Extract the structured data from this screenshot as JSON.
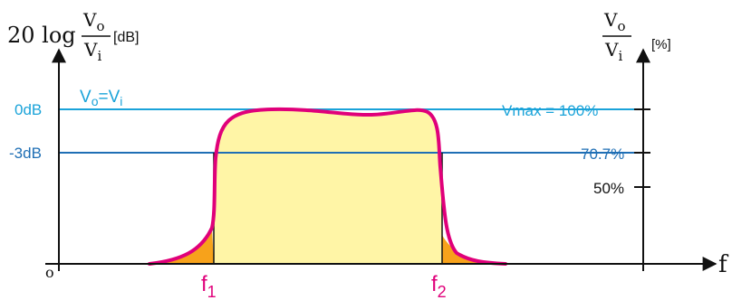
{
  "left_axis": {
    "title_prefix": "20 log",
    "num_main": "V",
    "num_sub": "o",
    "den_main": "V",
    "den_sub": "i",
    "unit": "[dB]"
  },
  "right_axis": {
    "num_main": "V",
    "num_sub": "o",
    "den_main": "V",
    "den_sub": "i",
    "unit": "[%]"
  },
  "labels": {
    "zero_db": "0dB",
    "minus3_db": "-3dB",
    "vo_eq_vi_main": "V",
    "vo_eq_vi_sub1": "o",
    "vo_eq_vi_eq": "=V",
    "vo_eq_vi_sub2": "i",
    "vmax": "Vmax = 100%",
    "p707": "70.7%",
    "p50": "50%",
    "origin": "o",
    "x_axis": "f",
    "f1_main": "f",
    "f1_sub": "1",
    "f2_main": "f",
    "f2_sub": "2"
  },
  "colors": {
    "axis": "#111111",
    "blue_line": "#1aa3d9",
    "blue_dark": "#1f6fb5",
    "curve": "#e0007a",
    "passband_fill": "#fff5a6",
    "skirt_fill": "#f7a21b"
  }
}
